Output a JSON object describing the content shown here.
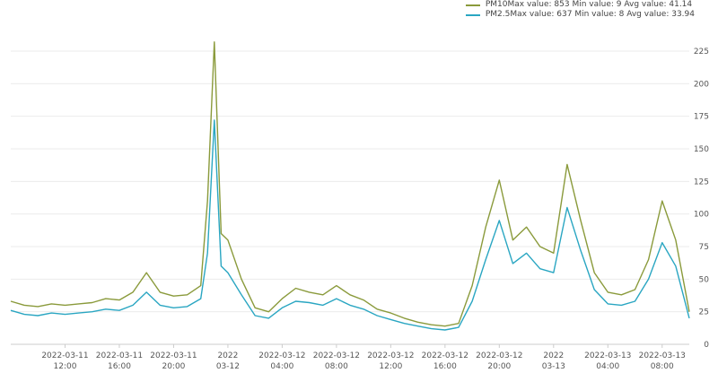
{
  "legend": [
    {
      "label": "PM10Max value: 853 Min value: 9 Avg value: 41.14",
      "color": "#8a9a3b"
    },
    {
      "label": "PM2.5Max value: 637 Min value: 8 Avg value: 33.94",
      "color": "#2aa6c2"
    }
  ],
  "chart_data": {
    "type": "line",
    "ylim": [
      0,
      225
    ],
    "yticks": [
      0,
      25,
      50,
      75,
      100,
      125,
      150,
      175,
      200,
      225
    ],
    "xlim": [
      "2022-03-11 08:00",
      "2022-03-13 10:00"
    ],
    "xticks": [
      {
        "x": "2022-03-11 12:00",
        "lines": [
          "2022-03-11",
          "12:00"
        ]
      },
      {
        "x": "2022-03-11 16:00",
        "lines": [
          "2022-03-11",
          "16:00"
        ]
      },
      {
        "x": "2022-03-11 20:00",
        "lines": [
          "2022-03-11",
          "20:00"
        ]
      },
      {
        "x": "2022-03-12 00:00",
        "lines": [
          "2022",
          "03-12"
        ]
      },
      {
        "x": "2022-03-12 04:00",
        "lines": [
          "2022-03-12",
          "04:00"
        ]
      },
      {
        "x": "2022-03-12 08:00",
        "lines": [
          "2022-03-12",
          "08:00"
        ]
      },
      {
        "x": "2022-03-12 12:00",
        "lines": [
          "2022-03-12",
          "12:00"
        ]
      },
      {
        "x": "2022-03-12 16:00",
        "lines": [
          "2022-03-12",
          "16:00"
        ]
      },
      {
        "x": "2022-03-12 20:00",
        "lines": [
          "2022-03-12",
          "20:00"
        ]
      },
      {
        "x": "2022-03-13 00:00",
        "lines": [
          "2022",
          "03-13"
        ]
      },
      {
        "x": "2022-03-13 04:00",
        "lines": [
          "2022-03-13",
          "04:00"
        ]
      },
      {
        "x": "2022-03-13 08:00",
        "lines": [
          "2022-03-13",
          "08:00"
        ]
      }
    ],
    "grid": true,
    "legend_position": "top-right",
    "series": [
      {
        "name": "PM10",
        "color": "#8a9a3b",
        "points": [
          [
            "2022-03-11 08:00",
            33
          ],
          [
            "2022-03-11 09:00",
            30
          ],
          [
            "2022-03-11 10:00",
            29
          ],
          [
            "2022-03-11 11:00",
            31
          ],
          [
            "2022-03-11 12:00",
            30
          ],
          [
            "2022-03-11 13:00",
            31
          ],
          [
            "2022-03-11 14:00",
            32
          ],
          [
            "2022-03-11 15:00",
            35
          ],
          [
            "2022-03-11 16:00",
            34
          ],
          [
            "2022-03-11 17:00",
            40
          ],
          [
            "2022-03-11 18:00",
            55
          ],
          [
            "2022-03-11 19:00",
            40
          ],
          [
            "2022-03-11 20:00",
            37
          ],
          [
            "2022-03-11 21:00",
            38
          ],
          [
            "2022-03-11 22:00",
            45
          ],
          [
            "2022-03-11 22:30",
            110
          ],
          [
            "2022-03-11 23:00",
            232
          ],
          [
            "2022-03-11 23:30",
            85
          ],
          [
            "2022-03-12 00:00",
            80
          ],
          [
            "2022-03-12 01:00",
            50
          ],
          [
            "2022-03-12 02:00",
            28
          ],
          [
            "2022-03-12 03:00",
            25
          ],
          [
            "2022-03-12 04:00",
            35
          ],
          [
            "2022-03-12 05:00",
            43
          ],
          [
            "2022-03-12 06:00",
            40
          ],
          [
            "2022-03-12 07:00",
            38
          ],
          [
            "2022-03-12 08:00",
            45
          ],
          [
            "2022-03-12 09:00",
            38
          ],
          [
            "2022-03-12 10:00",
            34
          ],
          [
            "2022-03-12 11:00",
            27
          ],
          [
            "2022-03-12 12:00",
            24
          ],
          [
            "2022-03-12 13:00",
            20
          ],
          [
            "2022-03-12 14:00",
            17
          ],
          [
            "2022-03-12 15:00",
            15
          ],
          [
            "2022-03-12 16:00",
            14
          ],
          [
            "2022-03-12 17:00",
            16
          ],
          [
            "2022-03-12 18:00",
            45
          ],
          [
            "2022-03-12 19:00",
            90
          ],
          [
            "2022-03-12 20:00",
            126
          ],
          [
            "2022-03-12 21:00",
            80
          ],
          [
            "2022-03-12 22:00",
            90
          ],
          [
            "2022-03-12 23:00",
            75
          ],
          [
            "2022-03-13 00:00",
            70
          ],
          [
            "2022-03-13 01:00",
            138
          ],
          [
            "2022-03-13 02:00",
            95
          ],
          [
            "2022-03-13 03:00",
            55
          ],
          [
            "2022-03-13 04:00",
            40
          ],
          [
            "2022-03-13 05:00",
            38
          ],
          [
            "2022-03-13 06:00",
            42
          ],
          [
            "2022-03-13 07:00",
            65
          ],
          [
            "2022-03-13 08:00",
            110
          ],
          [
            "2022-03-13 09:00",
            80
          ],
          [
            "2022-03-13 10:00",
            25
          ]
        ]
      },
      {
        "name": "PM2.5",
        "color": "#2aa6c2",
        "points": [
          [
            "2022-03-11 08:00",
            26
          ],
          [
            "2022-03-11 09:00",
            23
          ],
          [
            "2022-03-11 10:00",
            22
          ],
          [
            "2022-03-11 11:00",
            24
          ],
          [
            "2022-03-11 12:00",
            23
          ],
          [
            "2022-03-11 13:00",
            24
          ],
          [
            "2022-03-11 14:00",
            25
          ],
          [
            "2022-03-11 15:00",
            27
          ],
          [
            "2022-03-11 16:00",
            26
          ],
          [
            "2022-03-11 17:00",
            30
          ],
          [
            "2022-03-11 18:00",
            40
          ],
          [
            "2022-03-11 19:00",
            30
          ],
          [
            "2022-03-11 20:00",
            28
          ],
          [
            "2022-03-11 21:00",
            29
          ],
          [
            "2022-03-11 22:00",
            35
          ],
          [
            "2022-03-11 22:30",
            70
          ],
          [
            "2022-03-11 23:00",
            172
          ],
          [
            "2022-03-11 23:30",
            60
          ],
          [
            "2022-03-12 00:00",
            55
          ],
          [
            "2022-03-12 01:00",
            38
          ],
          [
            "2022-03-12 02:00",
            22
          ],
          [
            "2022-03-12 03:00",
            20
          ],
          [
            "2022-03-12 04:00",
            28
          ],
          [
            "2022-03-12 05:00",
            33
          ],
          [
            "2022-03-12 06:00",
            32
          ],
          [
            "2022-03-12 07:00",
            30
          ],
          [
            "2022-03-12 08:00",
            35
          ],
          [
            "2022-03-12 09:00",
            30
          ],
          [
            "2022-03-12 10:00",
            27
          ],
          [
            "2022-03-12 11:00",
            22
          ],
          [
            "2022-03-12 12:00",
            19
          ],
          [
            "2022-03-12 13:00",
            16
          ],
          [
            "2022-03-12 14:00",
            14
          ],
          [
            "2022-03-12 15:00",
            12
          ],
          [
            "2022-03-12 16:00",
            11
          ],
          [
            "2022-03-12 17:00",
            13
          ],
          [
            "2022-03-12 18:00",
            33
          ],
          [
            "2022-03-12 19:00",
            65
          ],
          [
            "2022-03-12 20:00",
            95
          ],
          [
            "2022-03-12 21:00",
            62
          ],
          [
            "2022-03-12 22:00",
            70
          ],
          [
            "2022-03-12 23:00",
            58
          ],
          [
            "2022-03-13 00:00",
            55
          ],
          [
            "2022-03-13 01:00",
            105
          ],
          [
            "2022-03-13 02:00",
            72
          ],
          [
            "2022-03-13 03:00",
            42
          ],
          [
            "2022-03-13 04:00",
            31
          ],
          [
            "2022-03-13 05:00",
            30
          ],
          [
            "2022-03-13 06:00",
            33
          ],
          [
            "2022-03-13 07:00",
            50
          ],
          [
            "2022-03-13 08:00",
            78
          ],
          [
            "2022-03-13 09:00",
            60
          ],
          [
            "2022-03-13 10:00",
            20
          ]
        ]
      }
    ]
  }
}
